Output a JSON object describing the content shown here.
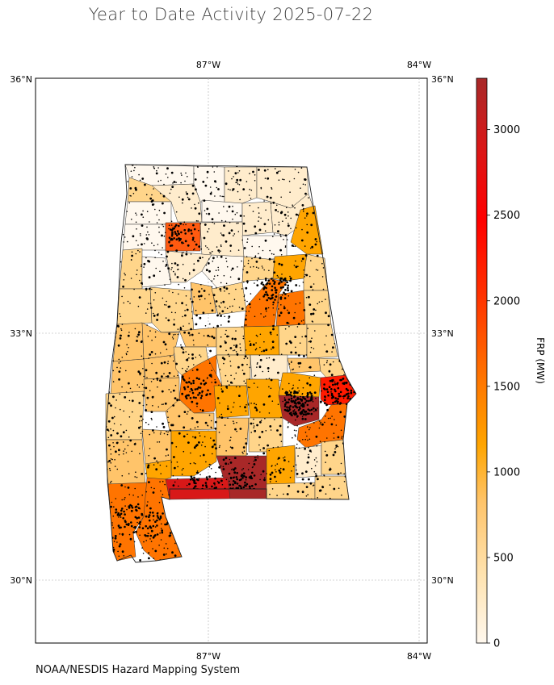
{
  "title": "Year to Date Activity 2025-07-22",
  "footer": "NOAA/NESDIS Hazard Mapping System",
  "map": {
    "lon_labels": [
      "87°W",
      "84°W"
    ],
    "lat_labels": [
      "36°N",
      "33°N",
      "30°N"
    ],
    "gridlines": true,
    "region": "Alabama counties"
  },
  "colorbar": {
    "label": "FRP (MW)",
    "ticks": [
      "0",
      "500",
      "1000",
      "1500",
      "2000",
      "2500",
      "3000"
    ],
    "min": 0,
    "max": 3300,
    "colors": [
      "#fff8ee",
      "#ffe3b0",
      "#ffc46a",
      "#ffa500",
      "#ff7400",
      "#ff3000",
      "#ff0000",
      "#d81818",
      "#a82828"
    ]
  }
}
